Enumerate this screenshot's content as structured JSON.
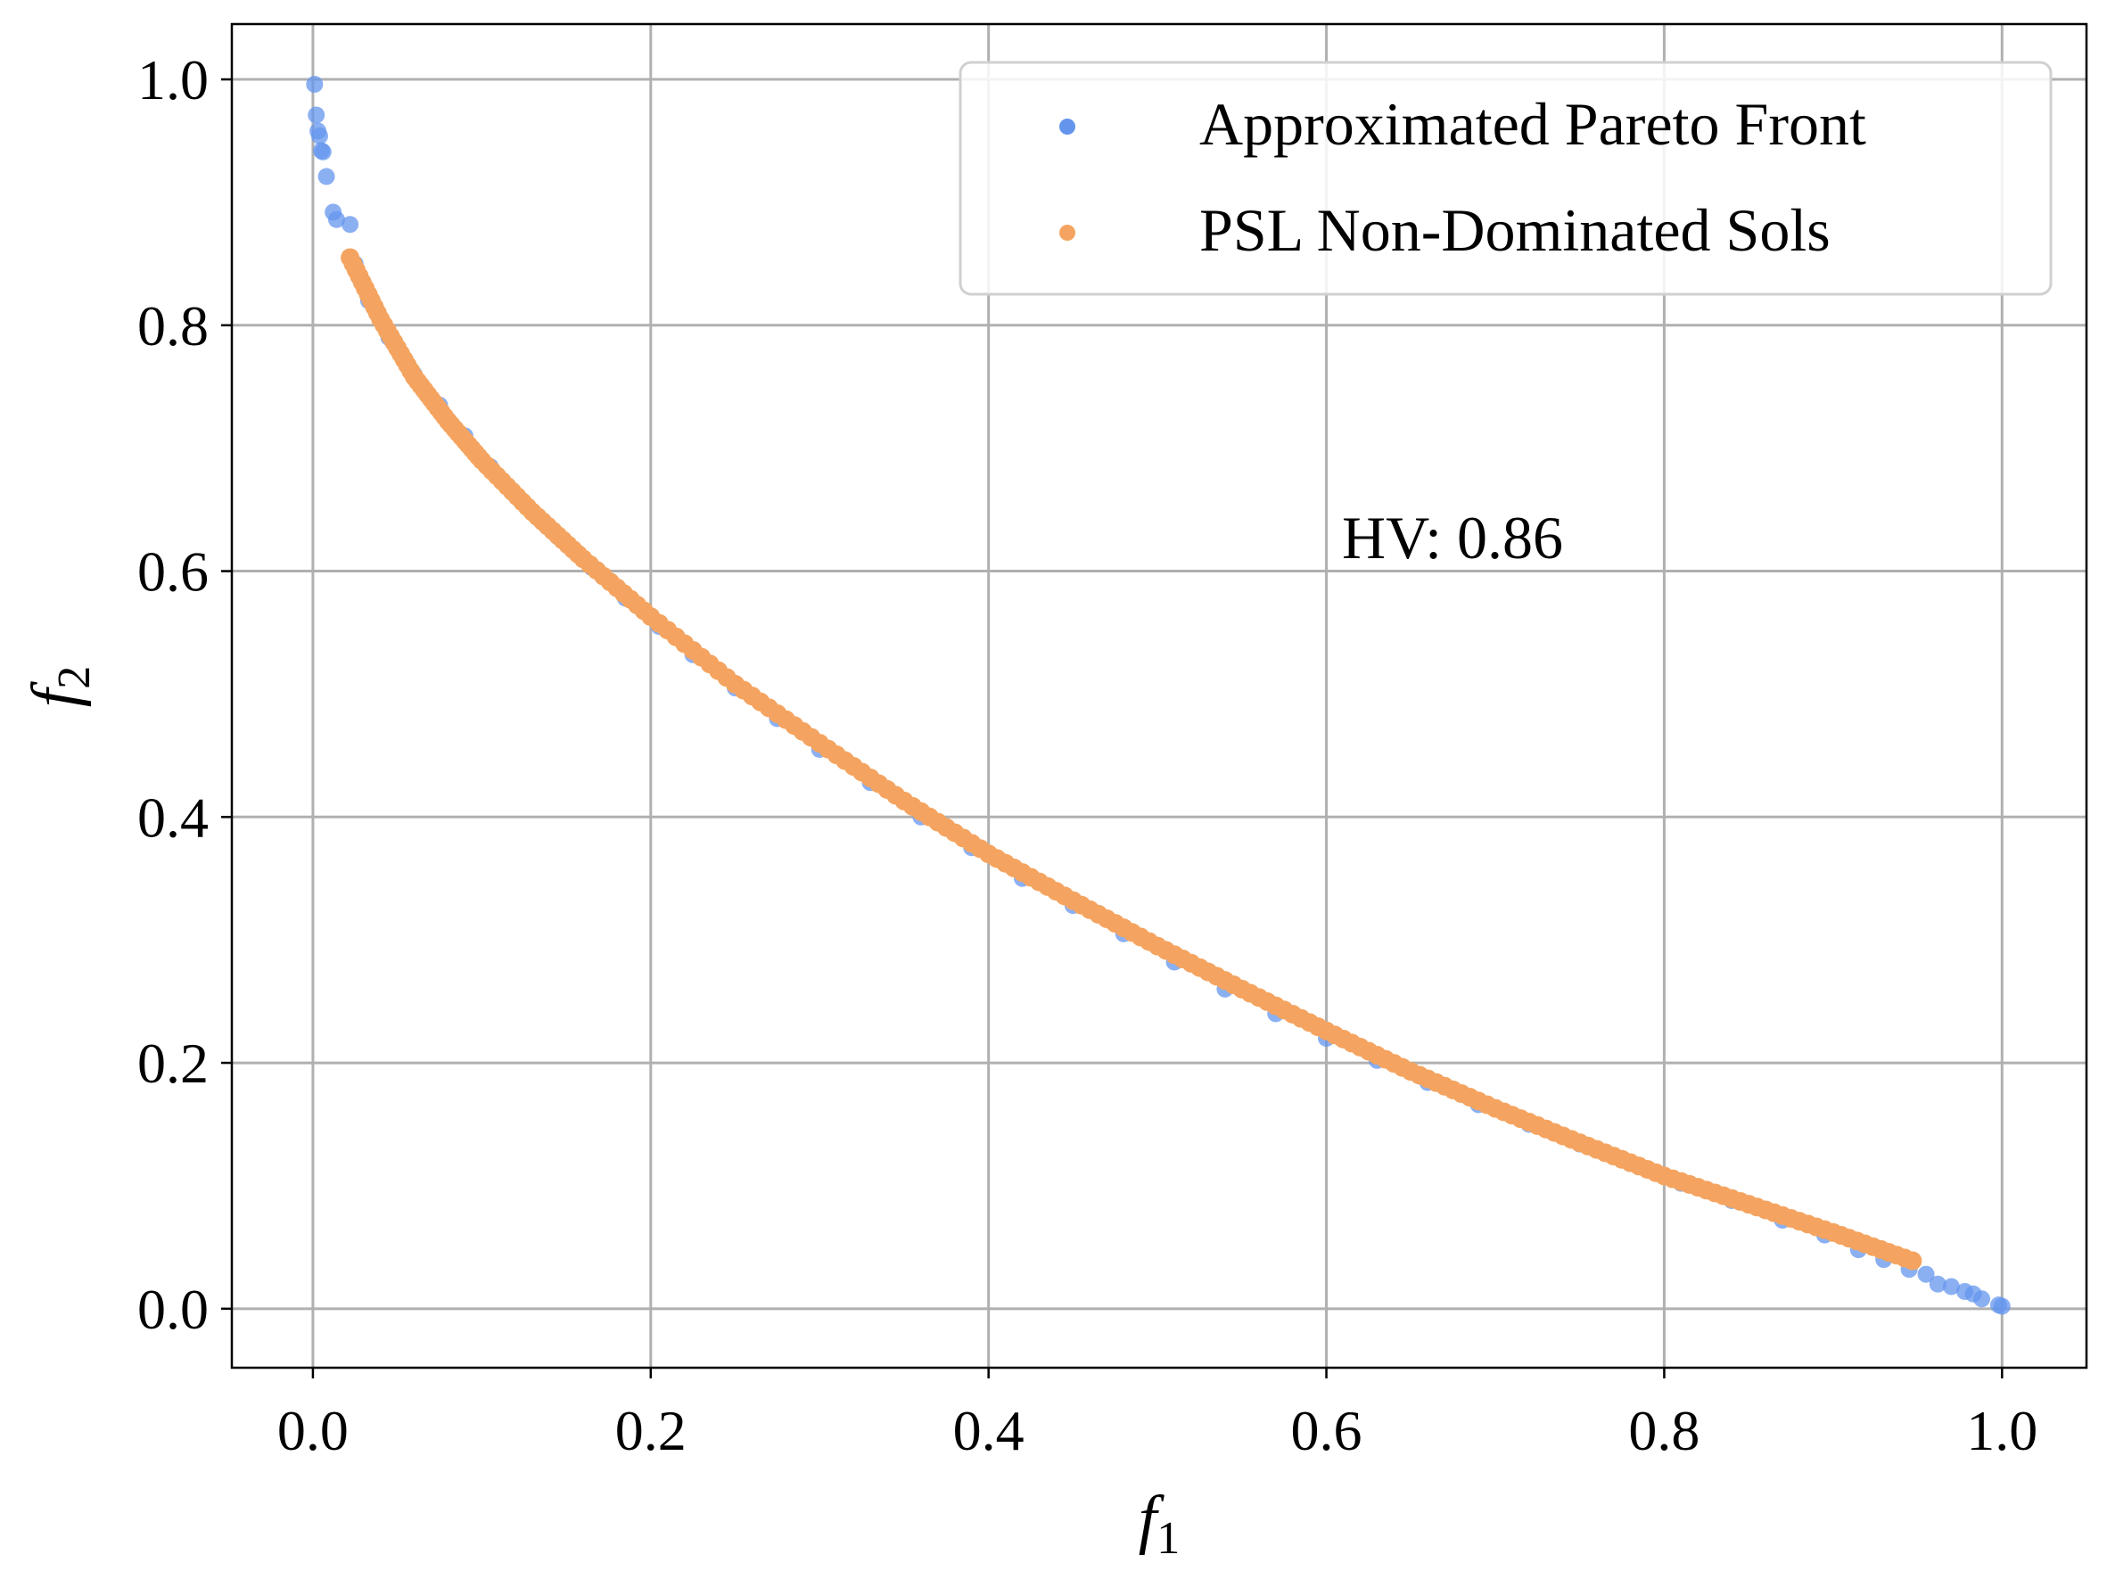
{
  "chart_data": {
    "type": "scatter",
    "title": "",
    "xlabel": "f",
    "xlabel_sub": "1",
    "ylabel": "f",
    "ylabel_sub": "2",
    "xlim": [
      -0.048,
      1.05
    ],
    "ylim": [
      -0.048,
      1.045
    ],
    "x_ticks": [
      0.0,
      0.2,
      0.4,
      0.6,
      0.8,
      1.0
    ],
    "y_ticks": [
      0.0,
      0.2,
      0.4,
      0.6,
      0.8,
      1.0
    ],
    "x_tick_labels": [
      "0.0",
      "0.2",
      "0.4",
      "0.6",
      "0.8",
      "1.0"
    ],
    "y_tick_labels": [
      "0.0",
      "0.2",
      "0.4",
      "0.6",
      "0.8",
      "1.0"
    ],
    "grid": true,
    "legend_position": "top-right",
    "annotation": "HV: 0.86",
    "colors": {
      "approx": "#6495ED",
      "psl": "#F4A460",
      "grid": "#b0b0b0"
    },
    "series": [
      {
        "name": "Approximated Pareto Front",
        "color": "#6495ED",
        "points": [
          [
            0.001,
            0.996
          ],
          [
            0.002,
            0.971
          ],
          [
            0.003,
            0.958
          ],
          [
            0.004,
            0.954
          ],
          [
            0.005,
            0.942
          ],
          [
            0.006,
            0.941
          ],
          [
            0.008,
            0.921
          ],
          [
            0.012,
            0.892
          ],
          [
            0.014,
            0.886
          ],
          [
            0.022,
            0.882
          ],
          [
            0.025,
            0.85
          ],
          [
            0.033,
            0.82
          ],
          [
            0.045,
            0.79
          ],
          [
            0.06,
            0.76
          ],
          [
            0.075,
            0.735
          ],
          [
            0.09,
            0.71
          ],
          [
            0.105,
            0.685
          ],
          [
            0.125,
            0.655
          ],
          [
            0.145,
            0.628
          ],
          [
            0.165,
            0.603
          ],
          [
            0.185,
            0.578
          ],
          [
            0.205,
            0.555
          ],
          [
            0.225,
            0.532
          ],
          [
            0.25,
            0.505
          ],
          [
            0.275,
            0.48
          ],
          [
            0.3,
            0.455
          ],
          [
            0.33,
            0.428
          ],
          [
            0.36,
            0.4
          ],
          [
            0.39,
            0.375
          ],
          [
            0.42,
            0.35
          ],
          [
            0.45,
            0.328
          ],
          [
            0.48,
            0.305
          ],
          [
            0.51,
            0.282
          ],
          [
            0.54,
            0.26
          ],
          [
            0.57,
            0.24
          ],
          [
            0.6,
            0.22
          ],
          [
            0.63,
            0.202
          ],
          [
            0.66,
            0.184
          ],
          [
            0.69,
            0.166
          ],
          [
            0.72,
            0.15
          ],
          [
            0.75,
            0.134
          ],
          [
            0.78,
            0.118
          ],
          [
            0.81,
            0.102
          ],
          [
            0.84,
            0.088
          ],
          [
            0.87,
            0.072
          ],
          [
            0.895,
            0.06
          ],
          [
            0.915,
            0.048
          ],
          [
            0.93,
            0.04
          ],
          [
            0.945,
            0.032
          ],
          [
            0.955,
            0.028
          ],
          [
            0.962,
            0.02
          ],
          [
            0.97,
            0.018
          ],
          [
            0.978,
            0.014
          ],
          [
            0.983,
            0.012
          ],
          [
            0.988,
            0.008
          ],
          [
            0.998,
            0.003
          ],
          [
            1.0,
            0.002
          ]
        ]
      },
      {
        "name": "PSL Non-Dominated Sols",
        "color": "#F4A460",
        "x_range": [
          0.022,
          0.947
        ],
        "points": [
          [
            0.022,
            0.855
          ],
          [
            0.04,
            0.805
          ],
          [
            0.06,
            0.758
          ],
          [
            0.08,
            0.722
          ],
          [
            0.1,
            0.69
          ],
          [
            0.13,
            0.648
          ],
          [
            0.16,
            0.61
          ],
          [
            0.2,
            0.563
          ],
          [
            0.25,
            0.508
          ],
          [
            0.3,
            0.46
          ],
          [
            0.35,
            0.413
          ],
          [
            0.4,
            0.37
          ],
          [
            0.45,
            0.332
          ],
          [
            0.5,
            0.295
          ],
          [
            0.55,
            0.26
          ],
          [
            0.6,
            0.226
          ],
          [
            0.65,
            0.193
          ],
          [
            0.7,
            0.163
          ],
          [
            0.75,
            0.135
          ],
          [
            0.8,
            0.108
          ],
          [
            0.85,
            0.085
          ],
          [
            0.9,
            0.062
          ],
          [
            0.947,
            0.039
          ]
        ]
      }
    ]
  }
}
